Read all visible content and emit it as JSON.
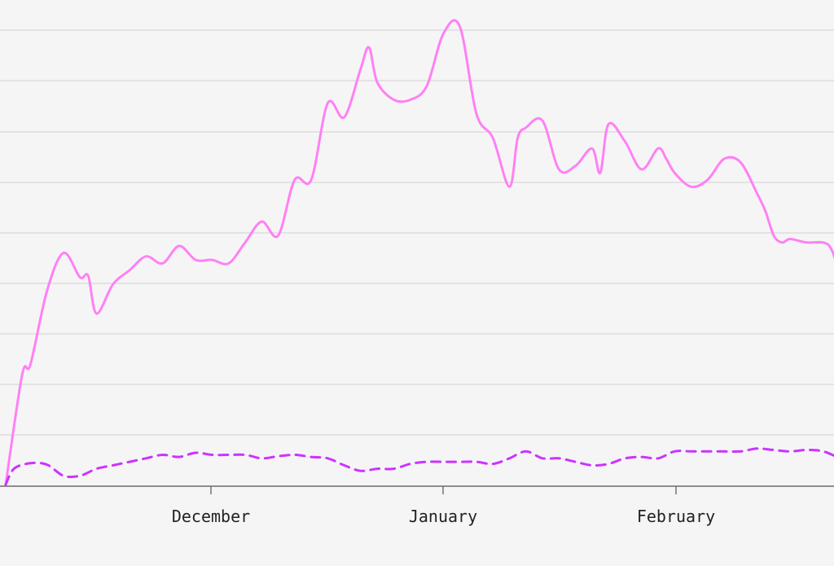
{
  "chart_data": {
    "type": "line",
    "x_tick_labels": [
      "December",
      "January",
      "February"
    ],
    "grid": true,
    "legend": "none",
    "series": [
      {
        "color": "#ff80f5",
        "dash": "solid",
        "values": [
          [
            1,
            0.2
          ],
          [
            3,
            16
          ],
          [
            4,
            17.5
          ],
          [
            6,
            28
          ],
          [
            8,
            33.5
          ],
          [
            10,
            30
          ],
          [
            11,
            30.2
          ],
          [
            12,
            24.8
          ],
          [
            14,
            29
          ],
          [
            16,
            31
          ],
          [
            18,
            33
          ],
          [
            20,
            32
          ],
          [
            22,
            34.5
          ],
          [
            24,
            32.5
          ],
          [
            26,
            32.5
          ],
          [
            28,
            32
          ],
          [
            30,
            35
          ],
          [
            32,
            38
          ],
          [
            34,
            36
          ],
          [
            36,
            44
          ],
          [
            38,
            44
          ],
          [
            40,
            55
          ],
          [
            42,
            53
          ],
          [
            44,
            60
          ],
          [
            45,
            63
          ],
          [
            46,
            58
          ],
          [
            48,
            55.5
          ],
          [
            50,
            55.5
          ],
          [
            52,
            57.5
          ],
          [
            54,
            65
          ],
          [
            56,
            66
          ],
          [
            58,
            53.5
          ],
          [
            60,
            50
          ],
          [
            62,
            43
          ],
          [
            63,
            50
          ],
          [
            64,
            51.5
          ],
          [
            66,
            52.5
          ],
          [
            68,
            45.5
          ],
          [
            70,
            46
          ],
          [
            72,
            48.5
          ],
          [
            73,
            45
          ],
          [
            74,
            52
          ],
          [
            76,
            49.5
          ],
          [
            78,
            45.5
          ],
          [
            80,
            48.5
          ],
          [
            81,
            47
          ],
          [
            82,
            45
          ],
          [
            84,
            43
          ],
          [
            86,
            44
          ],
          [
            88,
            47
          ],
          [
            90,
            46.5
          ],
          [
            92,
            42
          ],
          [
            93,
            39.5
          ],
          [
            94,
            36
          ],
          [
            95,
            35
          ],
          [
            96,
            35.5
          ],
          [
            98,
            35
          ],
          [
            100,
            35
          ],
          [
            101,
            34
          ],
          [
            102,
            30.5
          ]
        ]
      },
      {
        "color": "#cc33ff",
        "dash": "dashed",
        "values": [
          [
            1,
            0.2
          ],
          [
            2,
            2.5
          ],
          [
            4,
            3.3
          ],
          [
            6,
            3.1
          ],
          [
            8,
            1.5
          ],
          [
            10,
            1.5
          ],
          [
            12,
            2.5
          ],
          [
            14,
            3
          ],
          [
            16,
            3.5
          ],
          [
            18,
            4
          ],
          [
            20,
            4.5
          ],
          [
            22,
            4.2
          ],
          [
            24,
            4.8
          ],
          [
            26,
            4.5
          ],
          [
            28,
            4.5
          ],
          [
            30,
            4.5
          ],
          [
            32,
            4
          ],
          [
            34,
            4.3
          ],
          [
            36,
            4.5
          ],
          [
            38,
            4.2
          ],
          [
            40,
            4
          ],
          [
            42,
            3
          ],
          [
            44,
            2.2
          ],
          [
            46,
            2.5
          ],
          [
            48,
            2.5
          ],
          [
            50,
            3.2
          ],
          [
            52,
            3.5
          ],
          [
            54,
            3.5
          ],
          [
            56,
            3.5
          ],
          [
            58,
            3.5
          ],
          [
            60,
            3.2
          ],
          [
            62,
            4
          ],
          [
            64,
            5
          ],
          [
            66,
            4
          ],
          [
            68,
            4
          ],
          [
            70,
            3.5
          ],
          [
            72,
            3
          ],
          [
            74,
            3.2
          ],
          [
            76,
            4
          ],
          [
            78,
            4.2
          ],
          [
            80,
            4
          ],
          [
            82,
            5
          ],
          [
            84,
            5
          ],
          [
            86,
            5
          ],
          [
            88,
            5
          ],
          [
            90,
            5
          ],
          [
            92,
            5.4
          ],
          [
            94,
            5.2
          ],
          [
            96,
            5
          ],
          [
            98,
            5.2
          ],
          [
            100,
            5
          ],
          [
            102,
            4
          ]
        ]
      }
    ]
  }
}
